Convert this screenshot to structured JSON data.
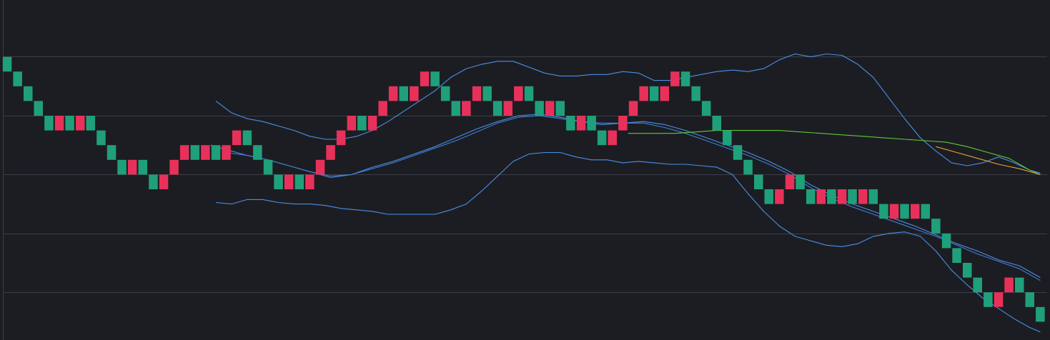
{
  "chart_data": {
    "type": "renko",
    "title": "",
    "xlabel": "",
    "ylabel": "",
    "grid": true,
    "ylim": [
      0,
      23
    ],
    "xlim": [
      0,
      100
    ],
    "bricks": [
      {
        "level": 18,
        "dir": "down"
      },
      {
        "level": 17,
        "dir": "down"
      },
      {
        "level": 16,
        "dir": "down"
      },
      {
        "level": 15,
        "dir": "down"
      },
      {
        "level": 14,
        "dir": "down"
      },
      {
        "level": 14,
        "dir": "up"
      },
      {
        "level": 14,
        "dir": "down"
      },
      {
        "level": 14,
        "dir": "up"
      },
      {
        "level": 14,
        "dir": "down"
      },
      {
        "level": 13,
        "dir": "down"
      },
      {
        "level": 12,
        "dir": "down"
      },
      {
        "level": 11,
        "dir": "down"
      },
      {
        "level": 11,
        "dir": "up"
      },
      {
        "level": 11,
        "dir": "down"
      },
      {
        "level": 10,
        "dir": "down"
      },
      {
        "level": 10,
        "dir": "up"
      },
      {
        "level": 11,
        "dir": "up"
      },
      {
        "level": 12,
        "dir": "up"
      },
      {
        "level": 12,
        "dir": "down"
      },
      {
        "level": 12,
        "dir": "up"
      },
      {
        "level": 12,
        "dir": "down"
      },
      {
        "level": 12,
        "dir": "up"
      },
      {
        "level": 13,
        "dir": "up"
      },
      {
        "level": 13,
        "dir": "down"
      },
      {
        "level": 12,
        "dir": "down"
      },
      {
        "level": 11,
        "dir": "down"
      },
      {
        "level": 10,
        "dir": "down"
      },
      {
        "level": 10,
        "dir": "up"
      },
      {
        "level": 10,
        "dir": "down"
      },
      {
        "level": 10,
        "dir": "up"
      },
      {
        "level": 11,
        "dir": "up"
      },
      {
        "level": 12,
        "dir": "up"
      },
      {
        "level": 13,
        "dir": "up"
      },
      {
        "level": 14,
        "dir": "up"
      },
      {
        "level": 14,
        "dir": "down"
      },
      {
        "level": 14,
        "dir": "up"
      },
      {
        "level": 15,
        "dir": "up"
      },
      {
        "level": 16,
        "dir": "up"
      },
      {
        "level": 16,
        "dir": "down"
      },
      {
        "level": 16,
        "dir": "up"
      },
      {
        "level": 17,
        "dir": "up"
      },
      {
        "level": 17,
        "dir": "down"
      },
      {
        "level": 16,
        "dir": "down"
      },
      {
        "level": 15,
        "dir": "down"
      },
      {
        "level": 15,
        "dir": "up"
      },
      {
        "level": 16,
        "dir": "up"
      },
      {
        "level": 16,
        "dir": "down"
      },
      {
        "level": 15,
        "dir": "down"
      },
      {
        "level": 15,
        "dir": "up"
      },
      {
        "level": 16,
        "dir": "up"
      },
      {
        "level": 16,
        "dir": "down"
      },
      {
        "level": 15,
        "dir": "down"
      },
      {
        "level": 15,
        "dir": "up"
      },
      {
        "level": 15,
        "dir": "down"
      },
      {
        "level": 14,
        "dir": "down"
      },
      {
        "level": 14,
        "dir": "up"
      },
      {
        "level": 14,
        "dir": "down"
      },
      {
        "level": 13,
        "dir": "down"
      },
      {
        "level": 13,
        "dir": "up"
      },
      {
        "level": 14,
        "dir": "up"
      },
      {
        "level": 15,
        "dir": "up"
      },
      {
        "level": 16,
        "dir": "up"
      },
      {
        "level": 16,
        "dir": "down"
      },
      {
        "level": 16,
        "dir": "up"
      },
      {
        "level": 17,
        "dir": "up"
      },
      {
        "level": 17,
        "dir": "down"
      },
      {
        "level": 16,
        "dir": "down"
      },
      {
        "level": 15,
        "dir": "down"
      },
      {
        "level": 14,
        "dir": "down"
      },
      {
        "level": 13,
        "dir": "down"
      },
      {
        "level": 12,
        "dir": "down"
      },
      {
        "level": 11,
        "dir": "down"
      },
      {
        "level": 10,
        "dir": "down"
      },
      {
        "level": 9,
        "dir": "down"
      },
      {
        "level": 9,
        "dir": "up"
      },
      {
        "level": 10,
        "dir": "up"
      },
      {
        "level": 10,
        "dir": "down"
      },
      {
        "level": 9,
        "dir": "down"
      },
      {
        "level": 9,
        "dir": "up"
      },
      {
        "level": 9,
        "dir": "down"
      },
      {
        "level": 9,
        "dir": "up"
      },
      {
        "level": 9,
        "dir": "down"
      },
      {
        "level": 9,
        "dir": "up"
      },
      {
        "level": 9,
        "dir": "down"
      },
      {
        "level": 8,
        "dir": "down"
      },
      {
        "level": 8,
        "dir": "up"
      },
      {
        "level": 8,
        "dir": "down"
      },
      {
        "level": 8,
        "dir": "up"
      },
      {
        "level": 8,
        "dir": "down"
      },
      {
        "level": 7,
        "dir": "down"
      },
      {
        "level": 6,
        "dir": "down"
      },
      {
        "level": 5,
        "dir": "down"
      },
      {
        "level": 4,
        "dir": "down"
      },
      {
        "level": 3,
        "dir": "down"
      },
      {
        "level": 2,
        "dir": "down"
      },
      {
        "level": 2,
        "dir": "up"
      },
      {
        "level": 3,
        "dir": "up"
      },
      {
        "level": 3,
        "dir": "down"
      },
      {
        "level": 2,
        "dir": "down"
      },
      {
        "level": 1,
        "dir": "down"
      }
    ],
    "series": [
      {
        "kind": "moving-average-fast",
        "color": "#4a8fe8",
        "x": [
          19.5,
          21,
          23,
          25,
          27,
          29,
          31,
          33,
          35,
          37,
          39,
          41,
          43,
          45,
          47,
          49,
          51,
          53,
          55,
          57,
          59,
          61,
          63,
          65,
          67,
          69,
          71,
          73,
          75,
          77,
          79,
          81,
          83,
          85,
          87,
          89,
          91,
          93,
          95,
          97,
          99
        ],
        "y": [
          13.0,
          12.7,
          12.3,
          12.0,
          11.6,
          11.2,
          10.8,
          11.0,
          11.5,
          11.9,
          12.4,
          12.9,
          13.5,
          14.1,
          14.6,
          15.0,
          15.1,
          14.9,
          14.6,
          14.4,
          14.5,
          14.6,
          14.4,
          14.0,
          13.5,
          13.0,
          12.5,
          11.9,
          11.2,
          10.3,
          9.6,
          9.0,
          8.5,
          8.0,
          7.5,
          6.9,
          6.3,
          5.8,
          5.2,
          4.8,
          4.0
        ]
      },
      {
        "kind": "moving-average-slow",
        "color": "#3f7fd6",
        "x": [
          21,
          23,
          25,
          27,
          29,
          31,
          33,
          35,
          37,
          39,
          41,
          43,
          45,
          47,
          49,
          51,
          53,
          55,
          57,
          59,
          61,
          63,
          65,
          67,
          69,
          71,
          73,
          75,
          77,
          79,
          81,
          83,
          85,
          87,
          89,
          91,
          93,
          95,
          97,
          99
        ],
        "y": [
          12.5,
          12.3,
          12.0,
          11.6,
          11.2,
          10.9,
          11.0,
          11.4,
          11.8,
          12.3,
          12.8,
          13.3,
          13.9,
          14.5,
          14.9,
          15.0,
          14.8,
          14.6,
          14.5,
          14.5,
          14.5,
          14.2,
          13.8,
          13.3,
          12.8,
          12.3,
          11.7,
          11.0,
          10.1,
          9.4,
          8.8,
          8.3,
          7.8,
          7.3,
          6.8,
          6.2,
          5.6,
          5.1,
          4.6,
          3.8
        ]
      },
      {
        "kind": "bollinger-upper",
        "color": "#4a8fe8",
        "x": [
          20,
          21.5,
          23,
          24.5,
          26,
          27.5,
          29,
          30.5,
          32,
          33.5,
          35,
          36.5,
          38,
          39.5,
          41,
          42.5,
          44,
          45.5,
          47,
          48.5,
          50,
          51.5,
          53,
          54.5,
          56,
          57.5,
          59,
          60.5,
          62,
          63.5,
          65,
          66.5,
          68,
          69.5,
          71,
          72.5,
          74,
          75.5,
          77,
          78.5,
          80,
          81.5,
          83,
          84.5,
          86,
          87.5,
          89,
          90.5,
          92,
          93.5,
          95,
          96.5,
          98,
          99
        ],
        "y": [
          16.0,
          15.2,
          14.8,
          14.6,
          14.3,
          14.0,
          13.6,
          13.4,
          13.4,
          13.6,
          14.0,
          14.6,
          15.3,
          16.0,
          16.7,
          17.6,
          18.2,
          18.5,
          18.7,
          18.7,
          18.3,
          17.9,
          17.7,
          17.7,
          17.8,
          17.8,
          18.0,
          17.9,
          17.4,
          17.4,
          17.6,
          17.8,
          18.0,
          18.1,
          18.0,
          18.2,
          18.8,
          19.2,
          19.0,
          19.2,
          19.1,
          18.5,
          17.6,
          16.2,
          14.8,
          13.5,
          12.6,
          11.8,
          11.6,
          11.8,
          12.2,
          11.8,
          11.3,
          11.1
        ]
      },
      {
        "kind": "bollinger-lower",
        "color": "#4a8fe8",
        "x": [
          20,
          21.5,
          23,
          24.5,
          26,
          27.5,
          29,
          30.5,
          32,
          33.5,
          35,
          36.5,
          38,
          39.5,
          41,
          42.5,
          44,
          45.5,
          47,
          48.5,
          50,
          51.5,
          53,
          54.5,
          56,
          57.5,
          59,
          60.5,
          62,
          63.5,
          65,
          66.5,
          68,
          69.5,
          71,
          72.5,
          74,
          75.5,
          77,
          78.5,
          80,
          81.5,
          83,
          84.5,
          86,
          87.5,
          89,
          90.5,
          92,
          93.5,
          95,
          96.5,
          98,
          99
        ],
        "y": [
          9.1,
          9.0,
          9.3,
          9.3,
          9.1,
          9.0,
          9.0,
          8.9,
          8.7,
          8.6,
          8.5,
          8.3,
          8.3,
          8.3,
          8.3,
          8.6,
          9.0,
          9.9,
          10.9,
          11.9,
          12.4,
          12.5,
          12.5,
          12.2,
          12.0,
          12.0,
          11.8,
          11.9,
          11.8,
          11.7,
          11.7,
          11.6,
          11.5,
          11.0,
          9.7,
          8.5,
          7.5,
          6.8,
          6.5,
          6.2,
          6.1,
          6.3,
          6.8,
          7.0,
          7.1,
          6.8,
          5.8,
          4.5,
          3.5,
          2.6,
          1.9,
          1.2,
          0.6,
          0.3
        ]
      },
      {
        "kind": "trend-line-green",
        "color": "#5cc93a",
        "x": [
          59.5,
          62,
          64,
          66,
          68,
          70,
          72,
          74,
          76,
          78,
          80,
          82,
          84,
          86,
          88,
          90,
          92,
          94,
          96,
          98,
          99
        ],
        "y": [
          13.8,
          13.8,
          13.8,
          13.9,
          14.0,
          14.0,
          14.0,
          14.0,
          13.9,
          13.8,
          13.7,
          13.6,
          13.5,
          13.4,
          13.3,
          13.2,
          12.9,
          12.5,
          12.1,
          11.3,
          11.0
        ]
      },
      {
        "kind": "trend-line-orange",
        "color": "#e8a23a",
        "x": [
          89,
          91,
          93,
          95,
          97,
          99
        ],
        "y": [
          12.9,
          12.5,
          12.1,
          11.7,
          11.4,
          11.0
        ]
      }
    ]
  }
}
